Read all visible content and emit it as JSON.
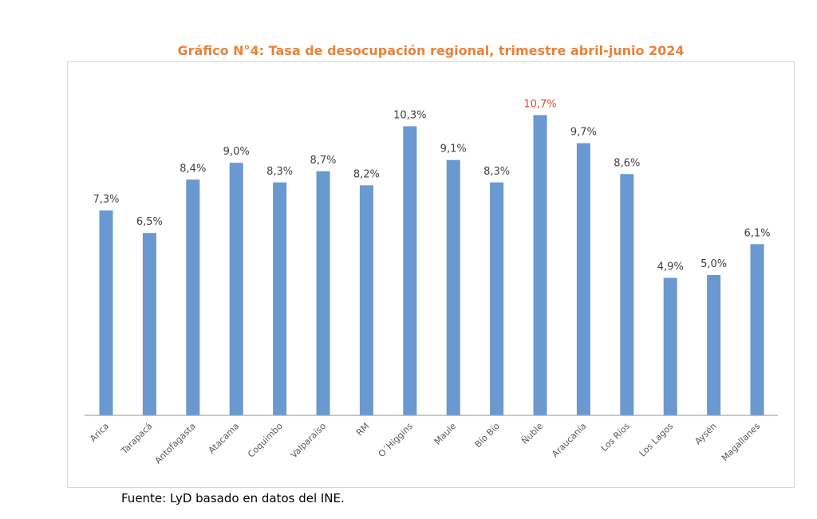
{
  "chart_data": {
    "type": "bar",
    "title": "Gráfico N°4: Tasa de desocupación regional, trimestre abril-junio 2024",
    "xlabel": "",
    "ylabel": "",
    "ylim": [
      0,
      11
    ],
    "grid": false,
    "categories": [
      "Arica",
      "Tarapacá",
      "Antofagasta",
      "Atacama",
      "Coquimbo",
      "Valparaíso",
      "RM",
      "O´Higgins",
      "Maule",
      "Bío Bío",
      "Ñuble",
      "Araucanía",
      "Los Ríos",
      "Los Lagos",
      "Aysén",
      "Magallanes"
    ],
    "values": [
      7.3,
      6.5,
      8.4,
      9.0,
      8.3,
      8.7,
      8.2,
      10.3,
      9.1,
      8.3,
      10.7,
      9.7,
      8.6,
      4.9,
      5.0,
      6.1
    ],
    "data_labels": [
      "7,3%",
      "6,5%",
      "8,4%",
      "9,0%",
      "8,3%",
      "8,7%",
      "8,2%",
      "10,3%",
      "9,1%",
      "8,3%",
      "10,7%",
      "9,7%",
      "8,6%",
      "4,9%",
      "5,0%",
      "6,1%"
    ],
    "highlight_index": 10,
    "colors": {
      "bar": "#6A98D0",
      "label": "#404040",
      "highlight_label": "#E8452C",
      "title": "#E8823A",
      "axis": "#A6A6A6",
      "frame": "#D9D9D9"
    }
  },
  "footer": {
    "source": "Fuente: LyD basado en datos del INE."
  }
}
